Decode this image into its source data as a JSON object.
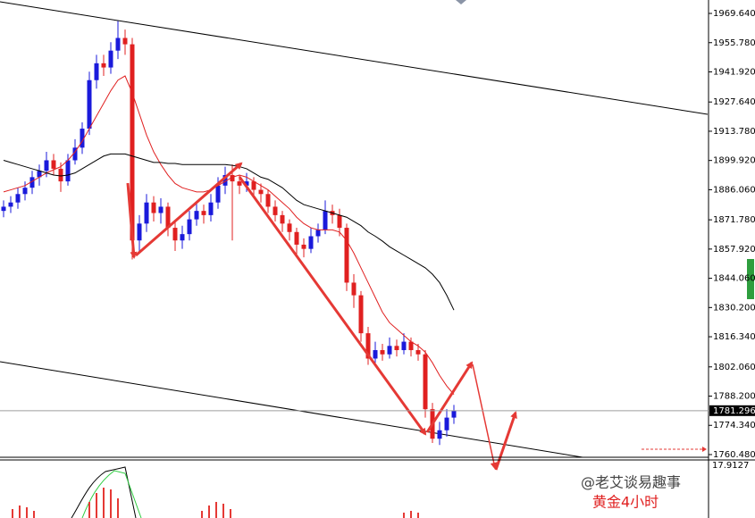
{
  "chart_data": {
    "type": "candlestick",
    "up_color": "#1a1adb",
    "down_color": "#e02020",
    "open": [
      1876,
      1878,
      1880,
      1884,
      1887,
      1892,
      1895,
      1900,
      1896,
      1890,
      1900,
      1906,
      1915,
      1938,
      1946,
      1944,
      1952,
      1958,
      1955,
      1862,
      1870,
      1880,
      1875,
      1878,
      1868,
      1862,
      1865,
      1872,
      1876,
      1874,
      1880,
      1888,
      1893,
      1890,
      1888,
      1890,
      1886,
      1884,
      1878,
      1874,
      1870,
      1866,
      1860,
      1858,
      1864,
      1867,
      1876,
      1874,
      1868,
      1842,
      1836,
      1818,
      1806,
      1810,
      1808,
      1812,
      1810,
      1814,
      1810,
      1808,
      1782,
      1768,
      1772,
      1778
    ],
    "high": [
      1881,
      1883,
      1887,
      1890,
      1895,
      1898,
      1904,
      1903,
      1899,
      1903,
      1910,
      1918,
      1942,
      1950,
      1950,
      1956,
      1966,
      1962,
      1958,
      1874,
      1884,
      1883,
      1882,
      1880,
      1871,
      1869,
      1876,
      1880,
      1879,
      1884,
      1892,
      1897,
      1898,
      1893,
      1894,
      1892,
      1889,
      1886,
      1881,
      1876,
      1872,
      1868,
      1863,
      1868,
      1870,
      1881,
      1879,
      1877,
      1870,
      1846,
      1838,
      1821,
      1814,
      1813,
      1816,
      1815,
      1818,
      1816,
      1813,
      1810,
      1785,
      1776,
      1782,
      1784
    ],
    "low": [
      1873,
      1875,
      1877,
      1881,
      1884,
      1888,
      1892,
      1893,
      1885,
      1888,
      1898,
      1903,
      1912,
      1934,
      1940,
      1941,
      1948,
      1950,
      1853,
      1856,
      1866,
      1871,
      1870,
      1864,
      1857,
      1858,
      1862,
      1869,
      1870,
      1871,
      1877,
      1884,
      1862,
      1884,
      1885,
      1882,
      1880,
      1875,
      1871,
      1866,
      1862,
      1855,
      1854,
      1856,
      1861,
      1865,
      1870,
      1864,
      1838,
      1830,
      1814,
      1803,
      1804,
      1805,
      1806,
      1807,
      1808,
      1807,
      1805,
      1778,
      1766,
      1765,
      1769,
      1775
    ],
    "close": [
      1878,
      1880,
      1884,
      1887,
      1892,
      1895,
      1900,
      1896,
      1890,
      1900,
      1906,
      1915,
      1938,
      1946,
      1944,
      1952,
      1958,
      1955,
      1862,
      1870,
      1880,
      1875,
      1878,
      1868,
      1862,
      1865,
      1872,
      1876,
      1874,
      1880,
      1888,
      1893,
      1890,
      1888,
      1890,
      1886,
      1884,
      1878,
      1874,
      1870,
      1866,
      1860,
      1858,
      1864,
      1867,
      1876,
      1874,
      1868,
      1842,
      1836,
      1818,
      1806,
      1810,
      1808,
      1812,
      1810,
      1814,
      1810,
      1808,
      1782,
      1768,
      1772,
      1778,
      1781.3
    ],
    "series": [
      {
        "color": "#e02020",
        "values": [
          1885,
          1886,
          1887,
          1888,
          1890,
          1892,
          1894,
          1895.5,
          1897,
          1900,
          1904,
          1909,
          1915,
          1921,
          1927,
          1933,
          1938,
          1940,
          1932,
          1922,
          1912,
          1904,
          1898,
          1893,
          1889,
          1887,
          1886,
          1885,
          1885,
          1886,
          1888,
          1890,
          1892,
          1893,
          1892,
          1890,
          1888,
          1886,
          1883,
          1880,
          1877,
          1873,
          1870,
          1868,
          1867,
          1867,
          1867,
          1866,
          1862,
          1856,
          1849,
          1842,
          1835,
          1828,
          1823,
          1820,
          1817,
          1814,
          1812,
          1809,
          1804,
          1798,
          1793,
          1789
        ]
      },
      {
        "color": "#000000",
        "values": [
          1900,
          1899,
          1898,
          1897,
          1896,
          1895,
          1894,
          1893,
          1892.6,
          1893,
          1894,
          1896,
          1898,
          1900,
          1902,
          1903,
          1903,
          1903,
          1902,
          1901,
          1900,
          1899,
          1899,
          1898.5,
          1898.5,
          1898,
          1898,
          1898,
          1898,
          1898,
          1898,
          1898,
          1897.6,
          1897,
          1896,
          1894,
          1892,
          1891,
          1889,
          1887,
          1884,
          1881,
          1879,
          1878,
          1877,
          1876,
          1875,
          1874,
          1873,
          1871,
          1869,
          1866,
          1864,
          1861.7,
          1859,
          1857,
          1855,
          1853,
          1851,
          1849,
          1846,
          1842,
          1836,
          1829
        ]
      }
    ],
    "ylim": [
      1759.2,
      1976.0
    ],
    "yticks": [
      {
        "value": 1969.64,
        "label": "1969.640"
      },
      {
        "value": 1955.78,
        "label": "1955.780"
      },
      {
        "value": 1941.92,
        "label": "1941.920"
      },
      {
        "value": 1927.64,
        "label": "1927.640"
      },
      {
        "value": 1913.78,
        "label": "1913.780"
      },
      {
        "value": 1899.92,
        "label": "1899.920"
      },
      {
        "value": 1886.06,
        "label": "1886.060"
      },
      {
        "value": 1871.78,
        "label": "1871.780"
      },
      {
        "value": 1857.92,
        "label": "1857.920"
      },
      {
        "value": 1844.06,
        "label": "1844.060"
      },
      {
        "value": 1830.2,
        "label": "1830.200"
      },
      {
        "value": 1816.34,
        "label": "1816.340"
      },
      {
        "value": 1802.06,
        "label": "1802.060"
      },
      {
        "value": 1788.2,
        "label": "1788.200"
      },
      {
        "value": 1774.34,
        "label": "1774.340"
      },
      {
        "value": 1760.48,
        "label": "1760.480"
      }
    ],
    "current_price": {
      "value": 1781.296,
      "label": "1781.296"
    },
    "indicator_value": 17.9127,
    "watermark": "@老艾谈易趣事",
    "annotation": "黄金4小时"
  }
}
